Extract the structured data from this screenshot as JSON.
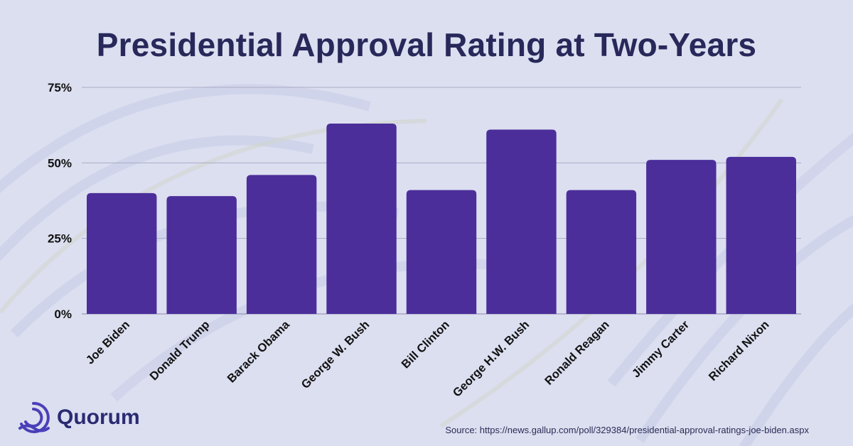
{
  "chart_data": {
    "type": "bar",
    "title": "Presidential Approval Rating at Two-Years",
    "xlabel": "",
    "ylabel": "",
    "categories": [
      "Joe Biden",
      "Donald Trump",
      "Barack Obama",
      "George W. Bush",
      "Bill Clinton",
      "George H.W. Bush",
      "Ronald Reagan",
      "Jimmy Carter",
      "Richard Nixon"
    ],
    "values": [
      40,
      39,
      46,
      63,
      41,
      61,
      41,
      51,
      52
    ],
    "ylim": [
      0,
      75
    ],
    "yticks": [
      0,
      25,
      50,
      75
    ],
    "ytick_labels": [
      "0%",
      "25%",
      "50%",
      "75%"
    ],
    "grid": true,
    "legend": "none",
    "bar_color": "#4b2e9a"
  },
  "branding": {
    "logo_name": "Quorum",
    "logo_icon": "quorum-swirl-icon",
    "logo_color": "#4b3fb8"
  },
  "source_text": "Source: https://news.gallup.com/poll/329384/presidential-approval-ratings-joe-biden.aspx"
}
